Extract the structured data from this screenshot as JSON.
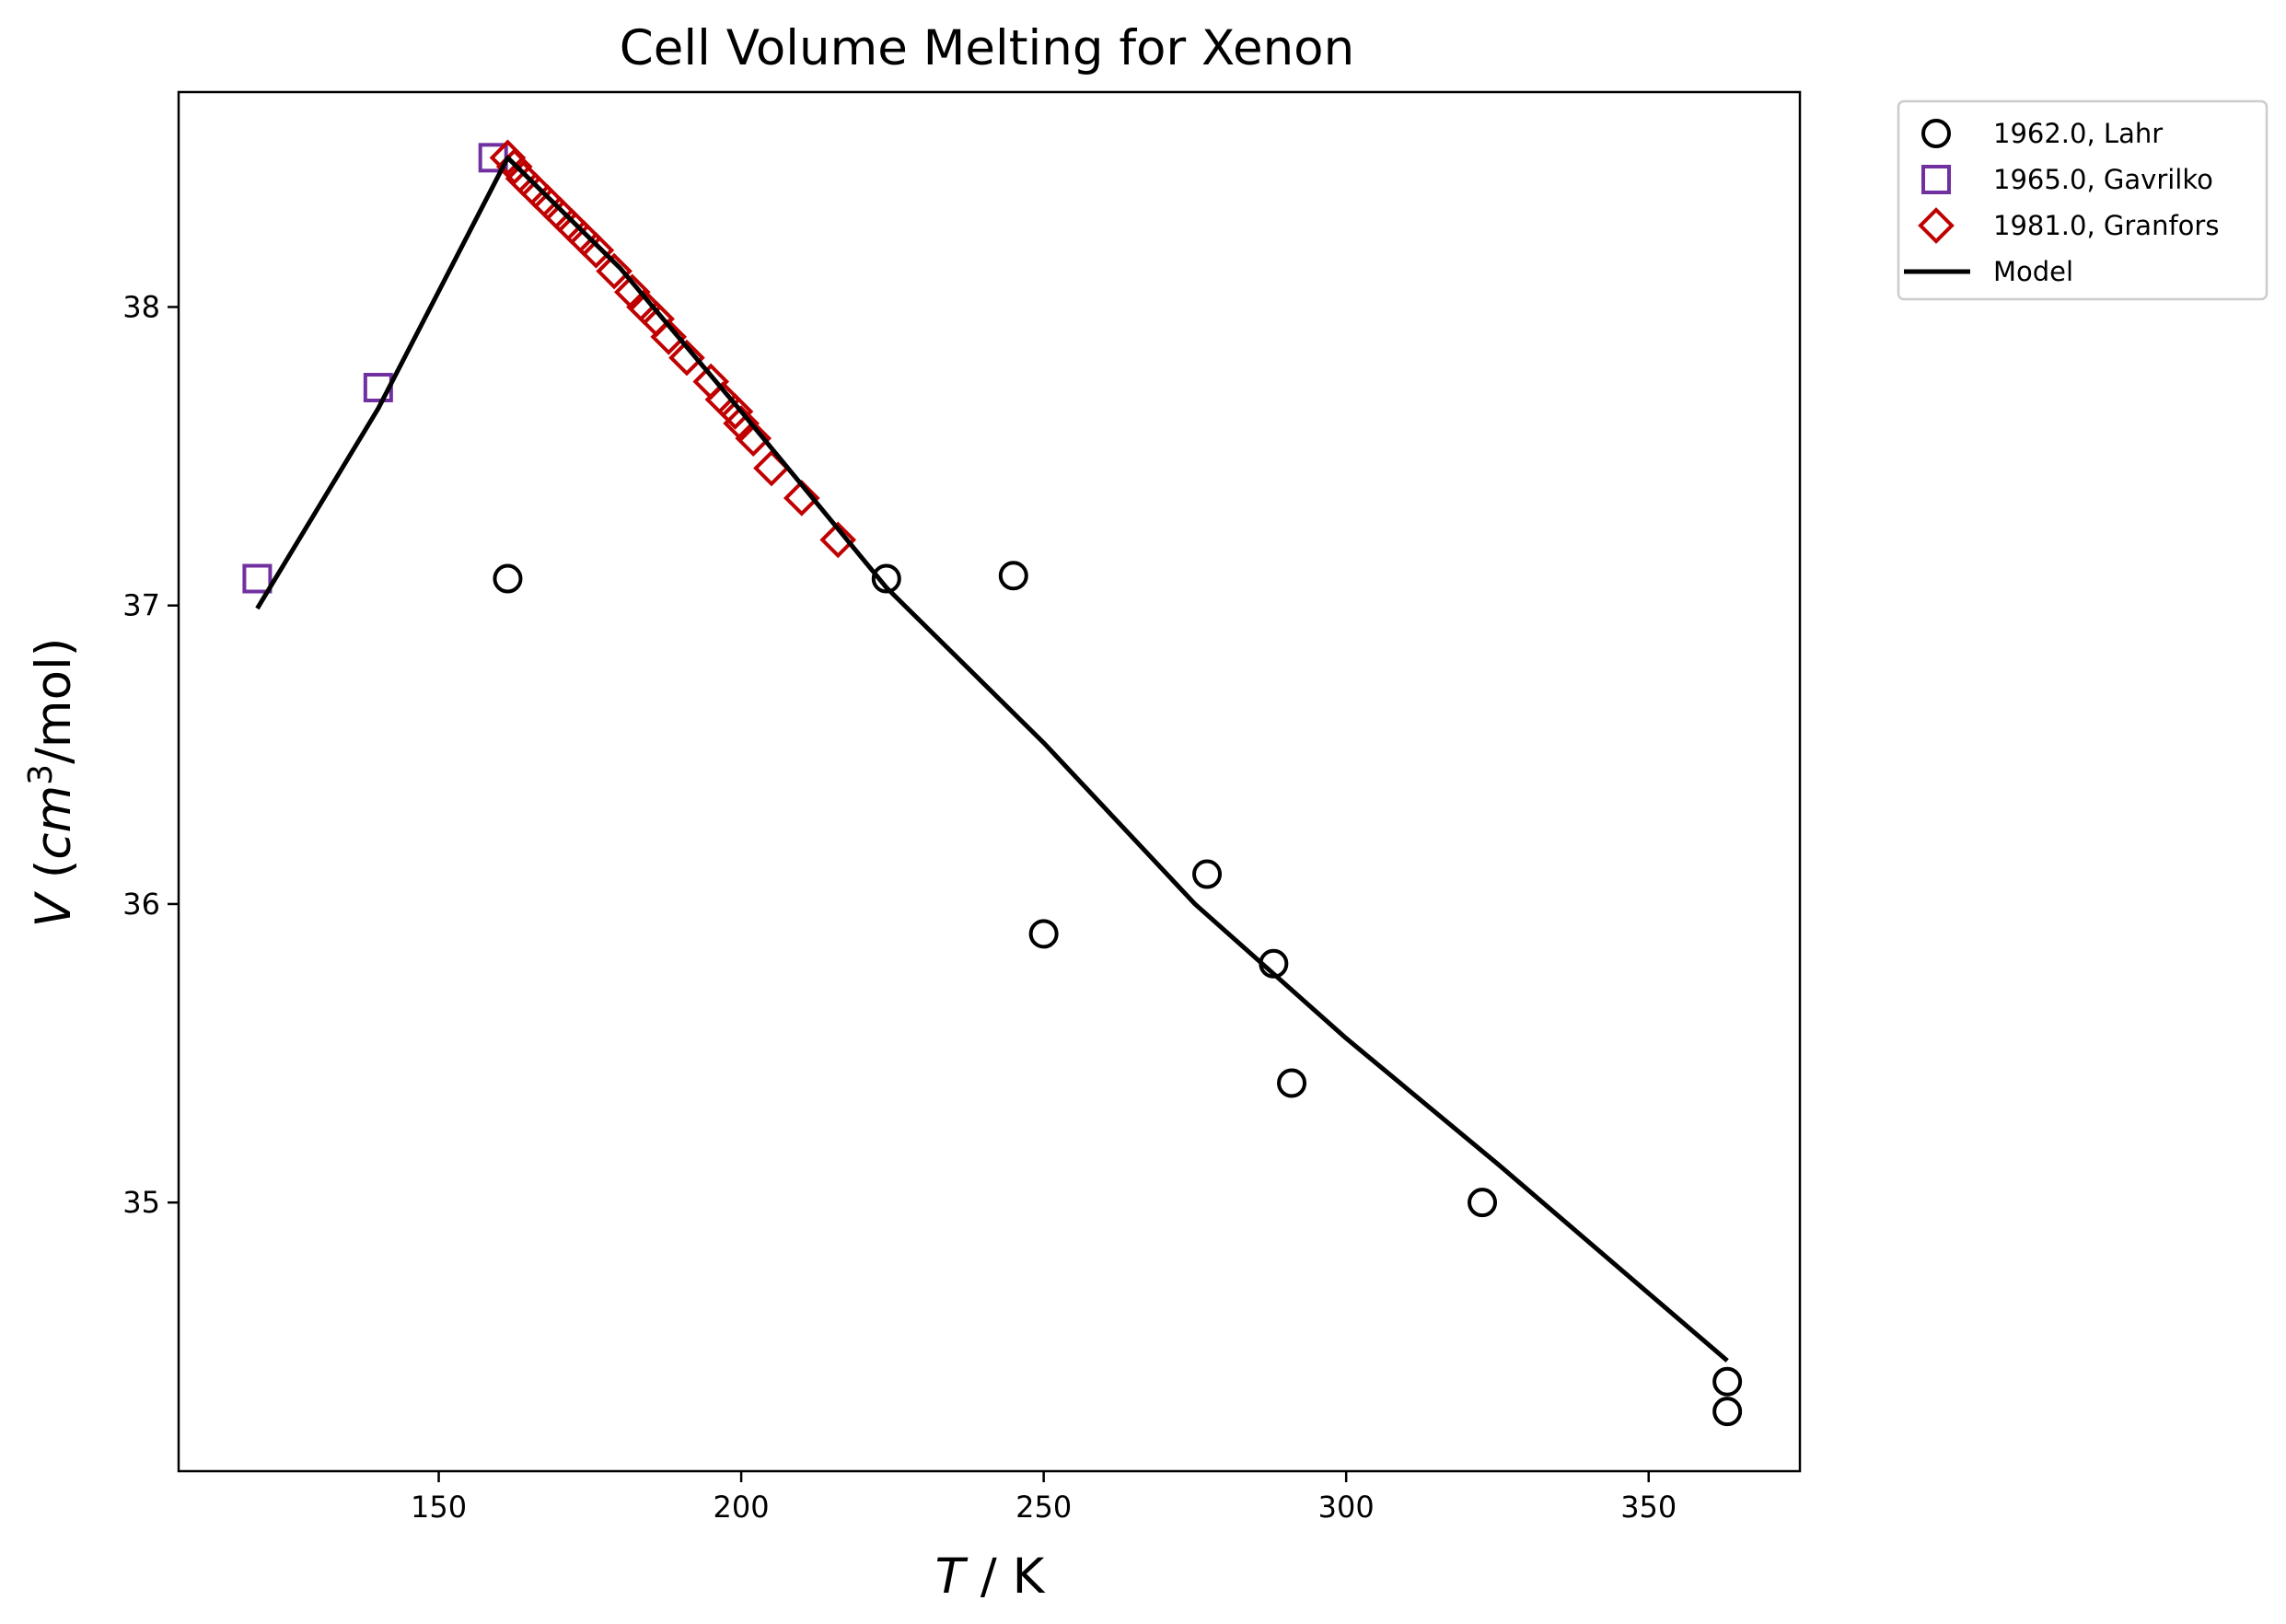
{
  "chart_data": {
    "type": "scatter",
    "title": "Cell Volume Melting for Xenon",
    "xlabel": {
      "italic": "T",
      "rest": " / K"
    },
    "ylabel": {
      "italic": "V",
      "open": " (",
      "unit_italic": "cm",
      "sup": "3",
      "close": "/mol)"
    },
    "xlim": [
      107,
      375
    ],
    "ylim": [
      34.1,
      38.72
    ],
    "xticks": [
      150,
      200,
      250,
      300,
      350
    ],
    "yticks": [
      35,
      36,
      37,
      38
    ],
    "grid": false,
    "legend_position": "outside-top-right",
    "series": [
      {
        "name": "1962.0, Lahr",
        "marker": "circle",
        "color": "#000000",
        "points": [
          [
            161.4,
            37.09
          ],
          [
            224.0,
            37.09
          ],
          [
            245.0,
            37.1
          ],
          [
            250.0,
            35.9
          ],
          [
            277.0,
            36.1
          ],
          [
            288.0,
            35.8
          ],
          [
            291.0,
            35.4
          ],
          [
            322.5,
            35.0
          ],
          [
            363.0,
            34.4
          ],
          [
            363.0,
            34.3
          ]
        ]
      },
      {
        "name": "1965.0, Gavrilko",
        "marker": "square",
        "color": "#7030a0",
        "points": [
          [
            120.0,
            37.09
          ],
          [
            140.0,
            37.73
          ],
          [
            159.0,
            38.5
          ]
        ]
      },
      {
        "name": "1981.0, Granfors",
        "marker": "diamond",
        "color": "#c00000",
        "points": [
          [
            161.4,
            38.5
          ],
          [
            162.5,
            38.47
          ],
          [
            164.0,
            38.43
          ],
          [
            166.0,
            38.39
          ],
          [
            168.0,
            38.35
          ],
          [
            170.0,
            38.31
          ],
          [
            172.0,
            38.27
          ],
          [
            174.0,
            38.23
          ],
          [
            176.0,
            38.19
          ],
          [
            179.0,
            38.12
          ],
          [
            182.0,
            38.05
          ],
          [
            184.0,
            38.0
          ],
          [
            186.0,
            37.96
          ],
          [
            188.0,
            37.9
          ],
          [
            191.0,
            37.83
          ],
          [
            195.0,
            37.75
          ],
          [
            197.0,
            37.69
          ],
          [
            199.0,
            37.65
          ],
          [
            200.0,
            37.61
          ],
          [
            202.0,
            37.56
          ],
          [
            205.0,
            37.46
          ],
          [
            210.0,
            37.36
          ],
          [
            216.0,
            37.22
          ]
        ]
      },
      {
        "name": "Model",
        "marker": "line",
        "color": "#000000",
        "points": [
          [
            120.0,
            36.99
          ],
          [
            140.0,
            37.66
          ],
          [
            161.4,
            38.5
          ],
          [
            180.0,
            38.13
          ],
          [
            200.0,
            37.65
          ],
          [
            224.0,
            37.06
          ],
          [
            250.0,
            36.54
          ],
          [
            275.0,
            36.0
          ],
          [
            300.0,
            35.55
          ],
          [
            325.0,
            35.13
          ],
          [
            363.0,
            34.47
          ]
        ]
      }
    ]
  }
}
